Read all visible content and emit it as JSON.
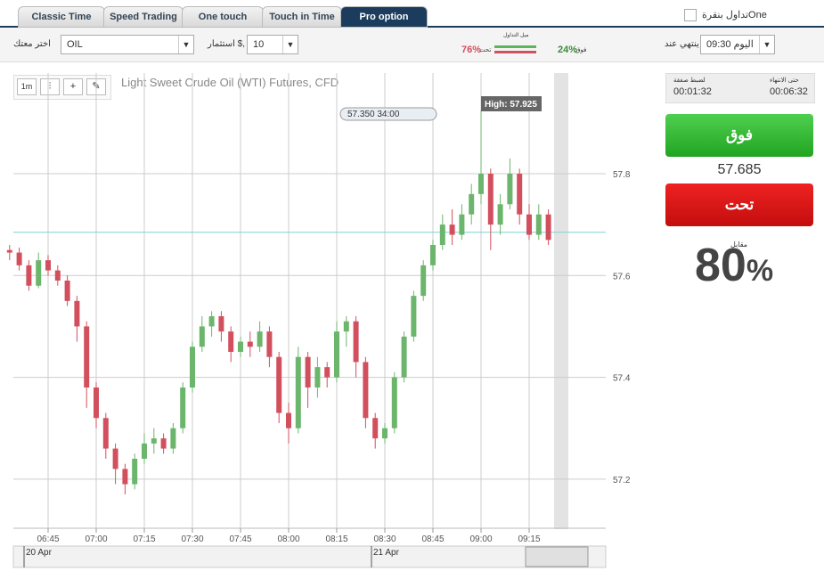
{
  "tabs": [
    "Classic Time",
    "Speed Trading",
    "One touch",
    "Touch in Time",
    "Pro option"
  ],
  "one_click": "تداول بنقرةOne",
  "toolbar": {
    "asset_label": "اختر معتك",
    "asset": "OIL",
    "invest_label": "استثمار $,",
    "invest": "10",
    "sentiment_title": "ميل التداول",
    "down_pct": "76%",
    "down_label": "تحت",
    "up_pct": "24%",
    "up_label": "فوق",
    "expiry_label": "ينتهي عند",
    "expiry": "اليوم 09:30"
  },
  "chart_tools": [
    "1m"
  ],
  "chart_data": {
    "type": "candlestick",
    "title": "Light Sweet Crude Oil (WTI) Futures, CFD",
    "categories": [
      null,
      null,
      null,
      null,
      null,
      null,
      null,
      null,
      null,
      null,
      null,
      null,
      null,
      null,
      null,
      null,
      null,
      null,
      null,
      null,
      null,
      null,
      null,
      null,
      null,
      null,
      null,
      null,
      null,
      null,
      null,
      null,
      null,
      null,
      null,
      null,
      null,
      null,
      null,
      null,
      null,
      null,
      null,
      null,
      null,
      null,
      null,
      null,
      null,
      null,
      null,
      null,
      null,
      null,
      null,
      null,
      null
    ],
    "open": [
      57.65,
      57.645,
      57.62,
      57.58,
      57.63,
      57.61,
      57.59,
      57.55,
      57.5,
      57.38,
      57.32,
      57.26,
      57.22,
      57.19,
      57.24,
      57.27,
      57.28,
      57.26,
      57.3,
      57.38,
      57.46,
      57.5,
      57.52,
      57.49,
      57.45,
      57.47,
      57.46,
      57.49,
      57.44,
      57.33,
      57.3,
      57.44,
      57.38,
      57.42,
      57.4,
      57.49,
      57.51,
      57.43,
      57.32,
      57.28,
      57.3,
      57.4,
      57.48,
      57.56,
      57.62,
      57.66,
      57.7,
      57.68,
      57.72,
      57.76,
      57.8,
      57.7,
      57.74,
      57.8,
      57.72,
      57.68,
      57.72
    ],
    "high": [
      57.66,
      57.655,
      57.63,
      57.645,
      57.64,
      57.62,
      57.6,
      57.56,
      57.51,
      57.39,
      57.33,
      57.27,
      57.23,
      57.25,
      57.29,
      57.3,
      57.29,
      57.31,
      57.39,
      57.47,
      57.52,
      57.53,
      57.53,
      57.5,
      57.48,
      57.49,
      57.51,
      57.5,
      57.45,
      57.35,
      57.46,
      57.45,
      57.44,
      57.43,
      57.51,
      57.52,
      57.52,
      57.44,
      57.33,
      57.31,
      57.41,
      57.49,
      57.57,
      57.63,
      57.67,
      57.72,
      57.73,
      57.74,
      57.78,
      57.925,
      57.81,
      57.76,
      57.83,
      57.81,
      57.74,
      57.74,
      57.73
    ],
    "low": [
      57.63,
      57.61,
      57.57,
      57.575,
      57.6,
      57.58,
      57.54,
      57.47,
      57.34,
      57.3,
      57.24,
      57.19,
      57.17,
      57.18,
      57.23,
      57.25,
      57.25,
      57.25,
      57.29,
      57.37,
      57.45,
      57.48,
      57.47,
      57.43,
      57.44,
      57.44,
      57.45,
      57.42,
      57.31,
      57.27,
      57.29,
      57.34,
      57.36,
      57.38,
      57.39,
      57.46,
      57.4,
      57.3,
      57.26,
      57.27,
      57.29,
      57.39,
      57.47,
      57.55,
      57.61,
      57.65,
      57.66,
      57.67,
      57.7,
      57.74,
      57.65,
      57.68,
      57.73,
      57.7,
      57.67,
      57.67,
      57.66
    ],
    "close": [
      57.645,
      57.62,
      57.58,
      57.63,
      57.61,
      57.59,
      57.55,
      57.5,
      57.38,
      57.32,
      57.26,
      57.22,
      57.19,
      57.24,
      57.27,
      57.28,
      57.26,
      57.3,
      57.38,
      57.46,
      57.5,
      57.52,
      57.49,
      57.45,
      57.47,
      57.46,
      57.49,
      57.44,
      57.33,
      57.3,
      57.44,
      57.38,
      57.42,
      57.4,
      57.49,
      57.51,
      57.43,
      57.32,
      57.28,
      57.3,
      57.4,
      57.48,
      57.56,
      57.62,
      57.66,
      57.7,
      57.68,
      57.72,
      57.76,
      57.8,
      57.7,
      57.74,
      57.8,
      57.72,
      57.68,
      57.72,
      57.67
    ],
    "up_color": "#6cb56c",
    "down_color": "#d2505e",
    "ylim": [
      57.1,
      58.0
    ],
    "yticks": [
      57.2,
      57.4,
      57.6,
      57.8
    ],
    "xticks": [
      {
        "value": 4,
        "label": "06:45"
      },
      {
        "value": 9,
        "label": "07:00"
      },
      {
        "value": 14,
        "label": "07:15"
      },
      {
        "value": 19,
        "label": "07:30"
      },
      {
        "value": 24,
        "label": "07:45"
      },
      {
        "value": 29,
        "label": "08:00"
      },
      {
        "value": 34,
        "label": "08:15"
      },
      {
        "value": 39,
        "label": "08:30"
      },
      {
        "value": 44,
        "label": "08:45"
      },
      {
        "value": 49,
        "label": "09:00"
      },
      {
        "value": 54,
        "label": "09:15"
      }
    ],
    "grid": true,
    "high_label": "High: 57.925",
    "cursor_label": "57.350 34:00",
    "nav_dates": [
      "20 Apr",
      "21 Apr"
    ]
  },
  "panel": {
    "left_label": "لضبط صفقة",
    "left_time": "00:01:32",
    "right_label": "حتى الانتهاء",
    "right_time": "00:06:32",
    "up_button": "فوق",
    "price": 57.685,
    "down_button": "تحت",
    "payout_label": "مقابل",
    "payout": 80,
    "payout_unit": "%"
  }
}
